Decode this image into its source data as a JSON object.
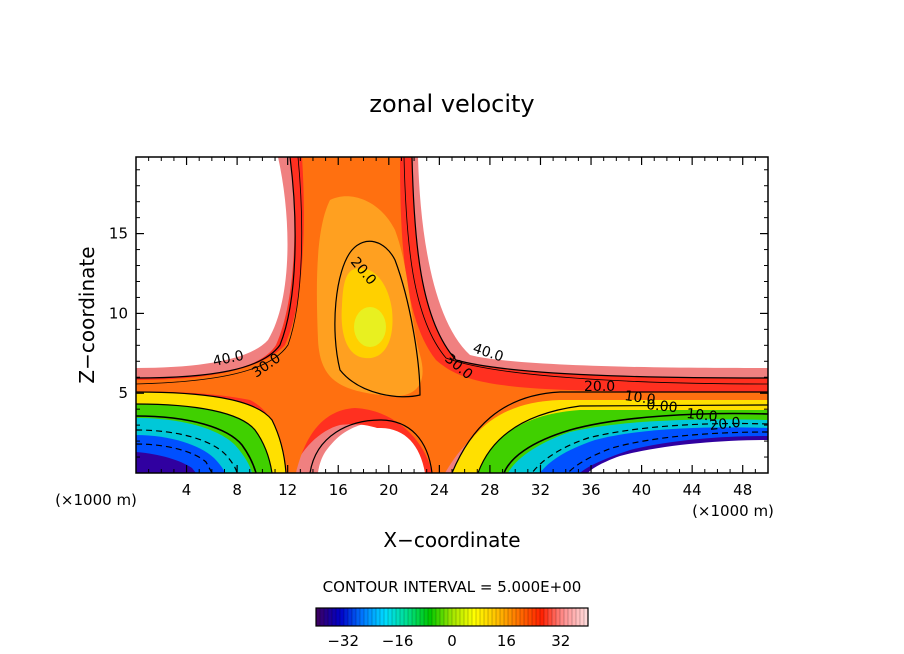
{
  "chart_data": {
    "type": "heatmap",
    "title": "zonal velocity",
    "xlabel": "X−coordinate",
    "ylabel": "Z−coordinate",
    "x_unit_left": "(×1000 m)",
    "x_unit_right": "(×1000 m)",
    "xlim": [
      0,
      50
    ],
    "ylim": [
      0,
      19.8
    ],
    "x_ticks": [
      4,
      8,
      12,
      16,
      20,
      24,
      28,
      32,
      36,
      40,
      44,
      48
    ],
    "y_ticks": [
      5,
      10,
      15
    ],
    "contour_interval_text": "CONTOUR INTERVAL = 5.000E+00",
    "contour_labels": [
      "40.0",
      "30.0",
      "20.0",
      "40.0",
      "30.0",
      "20.0",
      "10.0",
      "0.00",
      "10.0",
      "20.0"
    ],
    "colorbar": {
      "min": -40,
      "max": 40,
      "ticks": [
        -32,
        -16,
        0,
        16,
        32
      ],
      "colormap": [
        "#3a0066",
        "#0000c8",
        "#0078ff",
        "#00dcff",
        "#00e08c",
        "#00c800",
        "#a0e600",
        "#ffff00",
        "#ffc000",
        "#ff7000",
        "#ff2000",
        "#ff9090",
        "#ffd8d8"
      ]
    }
  }
}
